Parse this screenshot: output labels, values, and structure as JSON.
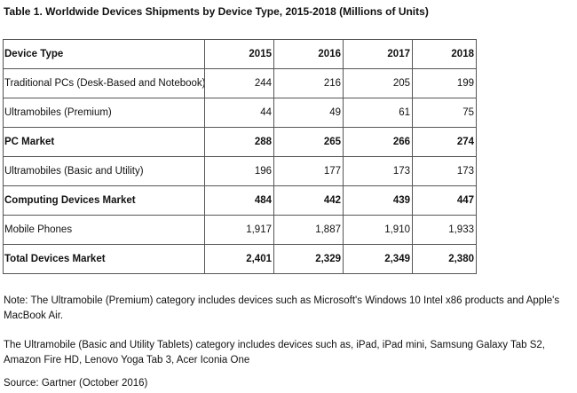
{
  "title": "Table 1. Worldwide Devices Shipments by Device Type, 2015-2018 (Millions of Units)",
  "table": {
    "headers": [
      "Device Type",
      "2015",
      "2016",
      "2017",
      "2018"
    ],
    "rows": [
      {
        "label": "Traditional PCs (Desk-Based and Notebook)",
        "values": [
          "244",
          "216",
          "205",
          "199"
        ],
        "bold": false
      },
      {
        "label": "Ultramobiles (Premium)",
        "values": [
          "44",
          "49",
          "61",
          "75"
        ],
        "bold": false
      },
      {
        "label": "PC Market",
        "values": [
          "288",
          "265",
          "266",
          "274"
        ],
        "bold": true
      },
      {
        "label": "Ultramobiles (Basic and Utility)",
        "values": [
          "196",
          "177",
          "173",
          "173"
        ],
        "bold": false
      },
      {
        "label": "Computing Devices Market",
        "values": [
          "484",
          "442",
          "439",
          "447"
        ],
        "bold": true
      },
      {
        "label": "Mobile Phones",
        "values": [
          "1,917",
          "1,887",
          "1,910",
          "1,933"
        ],
        "bold": false
      },
      {
        "label": "Total Devices Market",
        "values": [
          "2,401",
          "2,329",
          "2,349",
          "2,380"
        ],
        "bold": true
      }
    ]
  },
  "notes": {
    "note1": "Note: The Ultramobile (Premium) category includes devices such as Microsoft's Windows 10 Intel x86 products and Apple's MacBook Air.",
    "note2": "The Ultramobile (Basic and Utility Tablets) category includes devices such as, iPad, iPad mini, Samsung Galaxy Tab S2, Amazon Fire HD, Lenovo Yoga Tab 3, Acer Iconia One",
    "source": "Source: Gartner (October 2016)"
  }
}
